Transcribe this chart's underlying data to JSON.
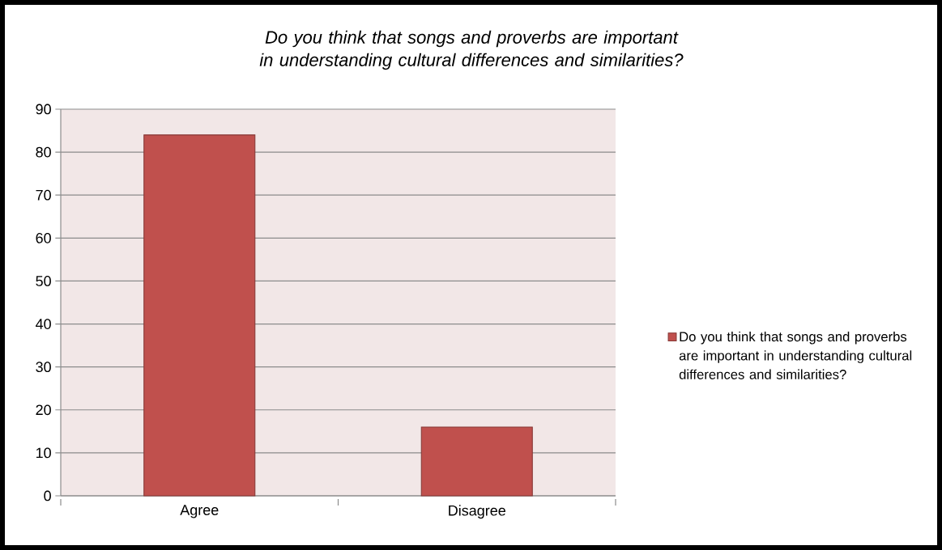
{
  "chart_data": {
    "type": "bar",
    "title": "Do you think that songs and proverbs are important in understanding cultural differences and similarities?",
    "categories": [
      "Agree",
      "Disagree"
    ],
    "series": [
      {
        "name": "Do you think that songs and proverbs are important in understanding cultural differences and similarities?",
        "color": "#c0504d",
        "values": [
          84,
          16
        ]
      }
    ],
    "ylim": [
      0,
      90
    ],
    "yticks": [
      0,
      10,
      20,
      30,
      40,
      50,
      60,
      70,
      80,
      90
    ],
    "grid": "y",
    "legend": "right"
  }
}
